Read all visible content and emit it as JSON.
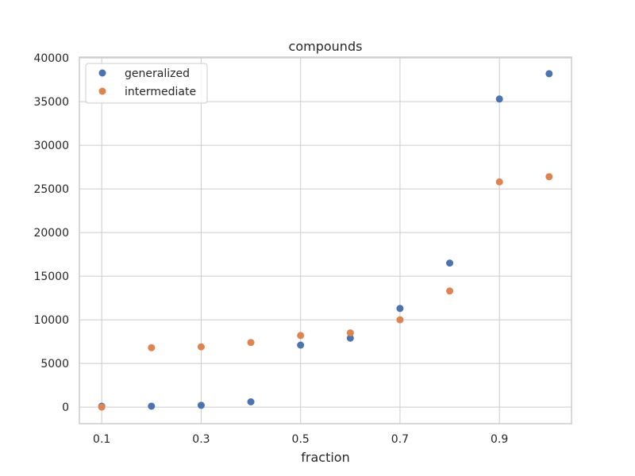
{
  "chart_data": {
    "type": "scatter",
    "title": "compounds",
    "xlabel": "fraction",
    "ylabel": "",
    "xlim": [
      0.055,
      1.045
    ],
    "ylim": [
      -1900,
      40100
    ],
    "x_ticks": [
      0.1,
      0.3,
      0.5,
      0.7,
      0.9
    ],
    "x_tick_labels": [
      "0.1",
      "0.3",
      "0.5",
      "0.7",
      "0.9"
    ],
    "y_ticks": [
      0,
      5000,
      10000,
      15000,
      20000,
      25000,
      30000,
      35000,
      40000
    ],
    "y_tick_labels": [
      "0",
      "5000",
      "10000",
      "15000",
      "20000",
      "25000",
      "30000",
      "35000",
      "40000"
    ],
    "grid": true,
    "legend_position": "top-left",
    "x": [
      0.1,
      0.2,
      0.3,
      0.4,
      0.5,
      0.6,
      0.7,
      0.8,
      0.9,
      1.0
    ],
    "series": [
      {
        "name": "generalized",
        "color": "#4c72b0",
        "values": [
          100,
          100,
          200,
          600,
          7100,
          7900,
          11300,
          16500,
          35300,
          38200
        ]
      },
      {
        "name": "intermediate",
        "color": "#dd8452",
        "values": [
          0,
          6800,
          6900,
          7400,
          8200,
          8500,
          10000,
          13300,
          25800,
          26400
        ]
      }
    ]
  }
}
